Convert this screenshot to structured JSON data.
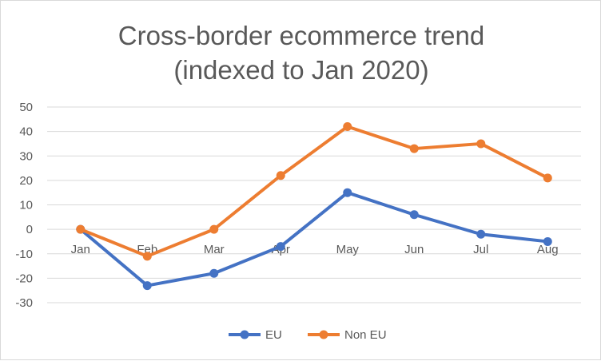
{
  "chart_data": {
    "type": "line",
    "title_line1": "Cross-border ecommerce trend",
    "title_line2": "(indexed to Jan 2020)",
    "categories": [
      "Jan",
      "Feb",
      "Mar",
      "Apr",
      "May",
      "Jun",
      "Jul",
      "Aug"
    ],
    "series": [
      {
        "name": "EU",
        "color": "#4472c4",
        "values": [
          0,
          -23,
          -18,
          -7,
          15,
          6,
          -2,
          -5
        ]
      },
      {
        "name": "Non EU",
        "color": "#ed7d31",
        "values": [
          0,
          -11,
          0,
          22,
          42,
          33,
          35,
          21
        ]
      }
    ],
    "ylim": [
      -30,
      50
    ],
    "yticks": [
      "50",
      "40",
      "30",
      "20",
      "10",
      "0",
      "-10",
      "-20",
      "-30"
    ],
    "grid": true,
    "legend_position": "bottom"
  }
}
